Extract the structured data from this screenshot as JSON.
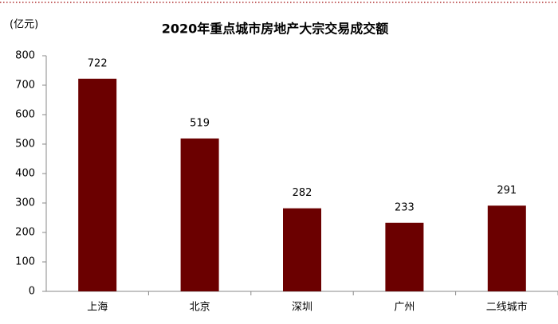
{
  "chart_data": {
    "type": "bar",
    "title": "2020年重点城市房地产大宗交易成交额",
    "y_axis_label": "(亿元)",
    "categories": [
      "上海",
      "北京",
      "深圳",
      "广州",
      "二线城市"
    ],
    "values": [
      722,
      519,
      282,
      233,
      291
    ],
    "color": "#6b0000",
    "ylim": [
      0,
      800
    ],
    "yticks": [
      0,
      100,
      200,
      300,
      400,
      500,
      600,
      700,
      800
    ],
    "grid": false,
    "data_labels": true
  }
}
